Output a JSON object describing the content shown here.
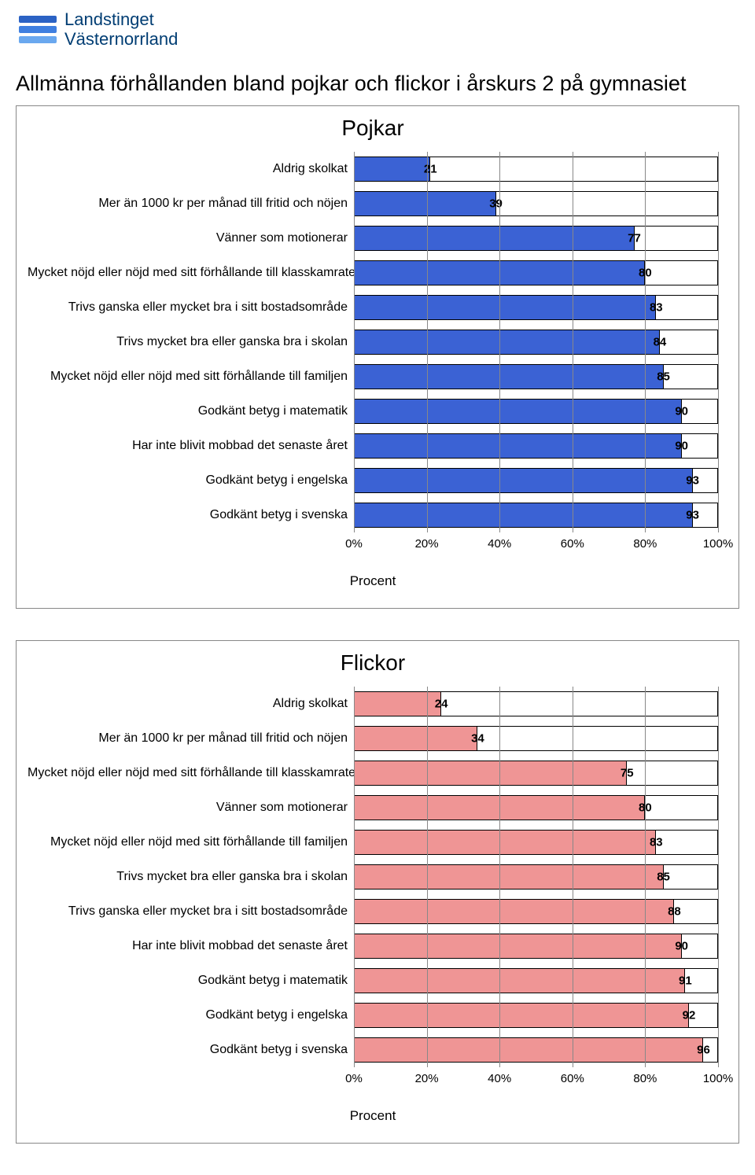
{
  "org": {
    "line1": "Landstinget",
    "line2": "Västernorrland",
    "wave_colors": [
      "#2b62c4",
      "#3f7fe0",
      "#6aa8ef"
    ]
  },
  "page_title": "Allmänna förhållanden bland pojkar och flickor i årskurs 2 på gymnasiet",
  "axis_ticks": [
    "0%",
    "20%",
    "40%",
    "60%",
    "80%",
    "100%"
  ],
  "axis_positions": [
    0,
    20,
    40,
    60,
    80,
    100
  ],
  "axis_label": "Procent",
  "chart1": {
    "title": "Pojkar",
    "bar_color": "#3b62d4",
    "outline_color": "#000000",
    "label_color": "#000000",
    "bg": "#ffffff",
    "grid_color": "#888888",
    "xlim": [
      0,
      100
    ],
    "series": [
      {
        "label": "Aldrig skolkat",
        "value": 21
      },
      {
        "label": "Mer än 1000 kr per månad till fritid och nöjen",
        "value": 39
      },
      {
        "label": "Vänner som motionerar",
        "value": 77
      },
      {
        "label": "Mycket nöjd eller nöjd med sitt förhållande till klasskamrater",
        "value": 80
      },
      {
        "label": "Trivs ganska eller mycket bra i sitt bostadsområde",
        "value": 83
      },
      {
        "label": "Trivs mycket bra eller ganska bra i skolan",
        "value": 84
      },
      {
        "label": "Mycket nöjd eller nöjd med sitt förhållande till familjen",
        "value": 85
      },
      {
        "label": "Godkänt betyg i matematik",
        "value": 90
      },
      {
        "label": "Har inte blivit mobbad det senaste året",
        "value": 90
      },
      {
        "label": "Godkänt betyg i engelska",
        "value": 93
      },
      {
        "label": "Godkänt betyg i svenska",
        "value": 93
      }
    ]
  },
  "chart2": {
    "title": "Flickor",
    "bar_color": "#ef9595",
    "outline_color": "#000000",
    "label_color": "#000000",
    "bg": "#ffffff",
    "grid_color": "#888888",
    "xlim": [
      0,
      100
    ],
    "series": [
      {
        "label": "Aldrig skolkat",
        "value": 24
      },
      {
        "label": "Mer än 1000 kr per månad till fritid och nöjen",
        "value": 34
      },
      {
        "label": "Mycket nöjd eller nöjd med sitt förhållande till klasskamrater",
        "value": 75
      },
      {
        "label": "Vänner som motionerar",
        "value": 80
      },
      {
        "label": "Mycket nöjd eller nöjd med sitt förhållande till familjen",
        "value": 83
      },
      {
        "label": "Trivs mycket bra eller ganska bra i skolan",
        "value": 85
      },
      {
        "label": "Trivs ganska eller mycket bra i sitt bostadsområde",
        "value": 88
      },
      {
        "label": "Har inte blivit mobbad det senaste året",
        "value": 90
      },
      {
        "label": "Godkänt betyg i matematik",
        "value": 91
      },
      {
        "label": "Godkänt betyg i engelska",
        "value": 92
      },
      {
        "label": "Godkänt betyg i svenska",
        "value": 96
      }
    ]
  }
}
